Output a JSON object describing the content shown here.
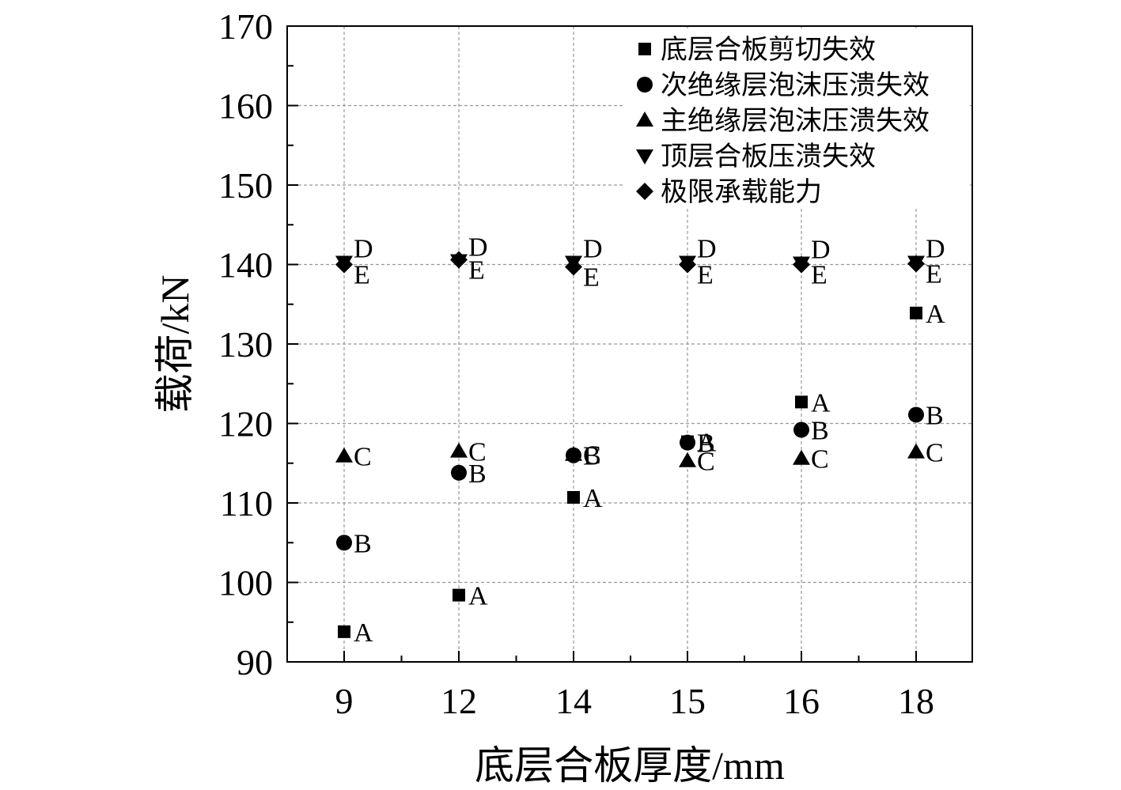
{
  "chart_data": {
    "type": "scatter",
    "xlabel": "底层合板厚度/mm",
    "ylabel": "载荷/kN",
    "categories": [
      "9",
      "12",
      "14",
      "15",
      "16",
      "18"
    ],
    "ylim": [
      90,
      170
    ],
    "yticks": [
      90,
      100,
      110,
      120,
      130,
      140,
      150,
      160,
      170
    ],
    "grid": true,
    "legend_position": "top-right",
    "series": [
      {
        "name": "底层合板剪切失效",
        "marker": "square",
        "point_label": "A",
        "values": [
          93.8,
          98.4,
          110.7,
          117.7,
          122.7,
          133.9
        ]
      },
      {
        "name": "次绝缘层泡沫压溃失效",
        "marker": "circle",
        "point_label": "B",
        "values": [
          105.0,
          113.8,
          116.0,
          117.6,
          119.2,
          121.1
        ]
      },
      {
        "name": "主绝缘层泡沫压溃失效",
        "marker": "triangle-up",
        "point_label": "C",
        "values": [
          115.9,
          116.5,
          116.1,
          115.3,
          115.6,
          116.4
        ]
      },
      {
        "name": "顶层合板压溃失效",
        "marker": "triangle-down",
        "point_label": "D",
        "values": [
          140.3,
          140.5,
          140.3,
          140.3,
          140.2,
          140.3
        ]
      },
      {
        "name": "极限承载能力",
        "marker": "diamond",
        "point_label": "E",
        "values": [
          140.0,
          140.6,
          139.7,
          140.0,
          140.0,
          140.1
        ]
      }
    ]
  }
}
